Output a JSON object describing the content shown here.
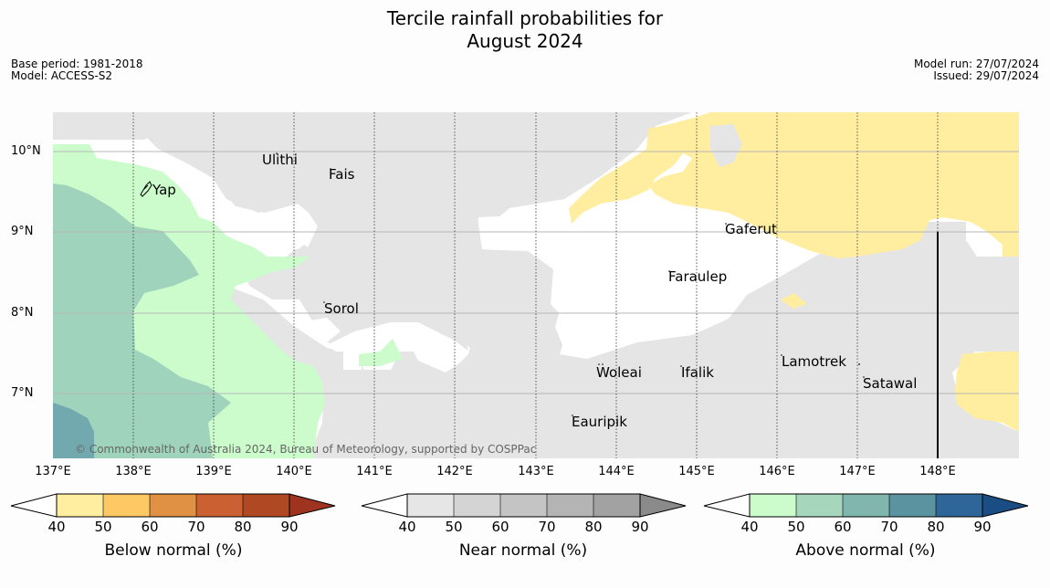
{
  "title_line1": "Tercile rainfall probabilities for",
  "title_line2": "August 2024",
  "base_period": "Base period: 1981-2018",
  "model": "Model: ACCESS-S2",
  "model_run": "Model run: 27/07/2024",
  "issued": "Issued: 29/07/2024",
  "copyright": "© Commonwealth of Australia 2024, Bureau of Meteorology, supported by COSPPac",
  "lat_labels": [
    "10°N",
    "9°N",
    "8°N",
    "7°N"
  ],
  "lon_labels": [
    "137°E",
    "138°E",
    "139°E",
    "140°E",
    "141°E",
    "142°E",
    "143°E",
    "144°E",
    "145°E",
    "146°E",
    "147°E",
    "148°E"
  ],
  "places": [
    "Ulithi",
    "Fais",
    "Yap",
    "Gaferut",
    "Faraulep",
    "Sorol",
    "Lamotrek",
    "Woleai",
    "Ifalik",
    "Satawal",
    "Eauripik"
  ],
  "colors": {
    "near_normal_fill": "#e5e5e5",
    "below_40": "#ffeea0",
    "above_40": "#ccfccc",
    "above_50": "#9fd3bc",
    "above_60": "#72a9ae"
  },
  "colorbars": {
    "ticks": [
      "40",
      "50",
      "60",
      "70",
      "80",
      "90"
    ],
    "below": {
      "label": "Below normal (%)",
      "colors": [
        "#ffeea0",
        "#fec864",
        "#e09143",
        "#cb6032",
        "#b04823",
        "#9e331f"
      ]
    },
    "near": {
      "label": "Near normal (%)",
      "colors": [
        "#e6e6e6",
        "#d4d4d4",
        "#c4c4c4",
        "#b4b4b4",
        "#a2a2a2",
        "#8a8a8a"
      ]
    },
    "above": {
      "label": "Above normal (%)",
      "colors": [
        "#ccfccc",
        "#a6d7bc",
        "#80b6ad",
        "#5c93a0",
        "#2f6699",
        "#1a4d83"
      ]
    }
  }
}
